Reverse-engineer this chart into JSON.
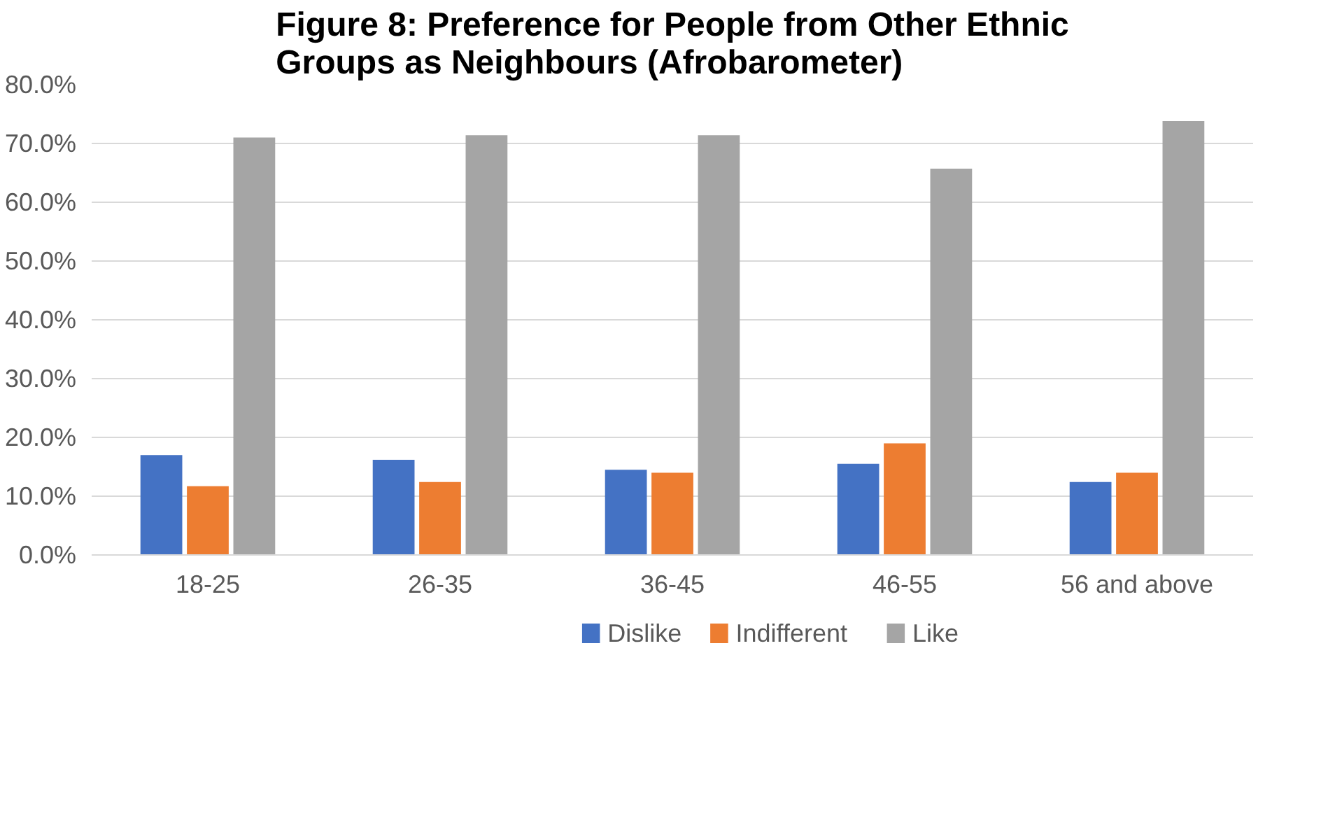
{
  "chart_data": {
    "type": "bar",
    "title": "Figure 8: Preference for People from Other Ethnic Groups as Neighbours (Afrobarometer)",
    "categories": [
      "18-25",
      "26-35",
      "36-45",
      "46-55",
      "56 and above"
    ],
    "series": [
      {
        "name": "Dislike",
        "color": "#4472c4",
        "values": [
          17.0,
          16.2,
          14.5,
          15.5,
          12.4
        ]
      },
      {
        "name": "Indifferent",
        "color": "#ed7d31",
        "values": [
          11.7,
          12.4,
          14.0,
          19.0,
          14.0
        ]
      },
      {
        "name": "Like",
        "color": "#a5a5a5",
        "values": [
          71.0,
          71.4,
          71.4,
          65.7,
          73.8
        ]
      }
    ],
    "ylim": [
      0,
      80
    ],
    "yticks": [
      {
        "value": 0,
        "label": "0.0%"
      },
      {
        "value": 10,
        "label": "10.0%"
      },
      {
        "value": 20,
        "label": "20.0%"
      },
      {
        "value": 30,
        "label": "30.0%"
      },
      {
        "value": 40,
        "label": "40.0%"
      },
      {
        "value": 50,
        "label": "50.0%"
      },
      {
        "value": 60,
        "label": "60.0%"
      },
      {
        "value": 70,
        "label": "70.0%"
      },
      {
        "value": 80,
        "label": "80.0%"
      }
    ],
    "grid": "y",
    "legend": "bottom"
  }
}
